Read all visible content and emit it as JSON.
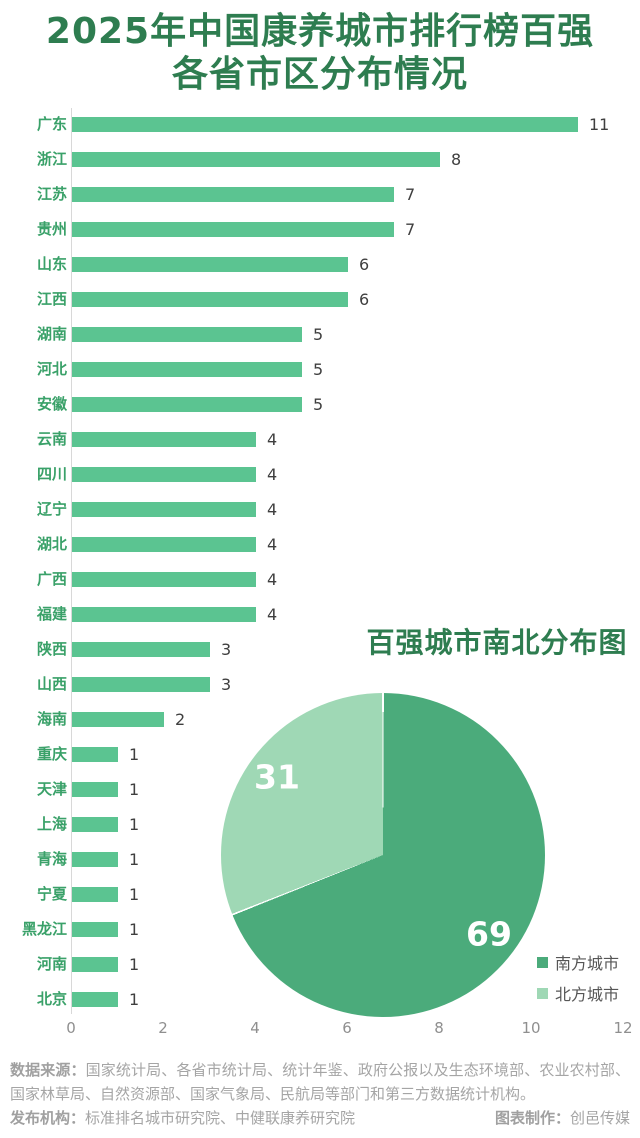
{
  "title": {
    "line1": "2025年中国康养城市排行榜百强",
    "line2": "各省市区分布情况"
  },
  "chart_data": [
    {
      "type": "bar",
      "orientation": "horizontal",
      "title": "",
      "categories": [
        "广东",
        "浙江",
        "江苏",
        "贵州",
        "山东",
        "江西",
        "湖南",
        "河北",
        "安徽",
        "云南",
        "四川",
        "辽宁",
        "湖北",
        "广西",
        "福建",
        "陕西",
        "山西",
        "海南",
        "重庆",
        "天津",
        "上海",
        "青海",
        "宁夏",
        "黑龙江",
        "河南",
        "北京"
      ],
      "values": [
        11,
        8,
        7,
        7,
        6,
        6,
        5,
        5,
        5,
        4,
        4,
        4,
        4,
        4,
        4,
        3,
        3,
        2,
        1,
        1,
        1,
        1,
        1,
        1,
        1,
        1
      ],
      "xlabel": "",
      "ylabel": "",
      "xlim": [
        0,
        12
      ],
      "x_ticks": [
        0,
        2,
        4,
        6,
        8,
        10,
        12
      ],
      "grid": false,
      "bar_color": "#5bc491",
      "category_label_color": "#3aa169",
      "value_label_color": "#3f3f3f"
    },
    {
      "type": "pie",
      "title": "百强城市南北分布图",
      "slices": [
        {
          "label": "南方城市",
          "value": 69,
          "color": "#4bab7b"
        },
        {
          "label": "北方城市",
          "value": 31,
          "color": "#9fd8b5"
        }
      ],
      "start_angle": "top",
      "direction": "clockwise",
      "legend_position": "bottom-right",
      "value_label_color": "#ffffff"
    }
  ],
  "colors": {
    "title_green": "#2e7d50",
    "bar_green": "#5bc491",
    "pie_dark_green": "#4bab7b",
    "pie_light_green": "#9fd8b5",
    "axis_line": "#d8d8d8",
    "tick_gray": "#8f8f8f",
    "footer_gray": "#a5a5a5"
  },
  "footer": {
    "source_label": "数据来源：",
    "source_text": "国家统计局、各省市统计局、统计年鉴、政府公报以及生态环境部、农业农村部、国家林草局、自然资源部、国家气象局、民航局等部门和第三方数据统计机构。",
    "publisher_label": "发布机构：",
    "publisher_text": "标准排名城市研究院、中健联康养研究院",
    "maker_label": "图表制作：",
    "maker_text": "创邑传媒"
  }
}
